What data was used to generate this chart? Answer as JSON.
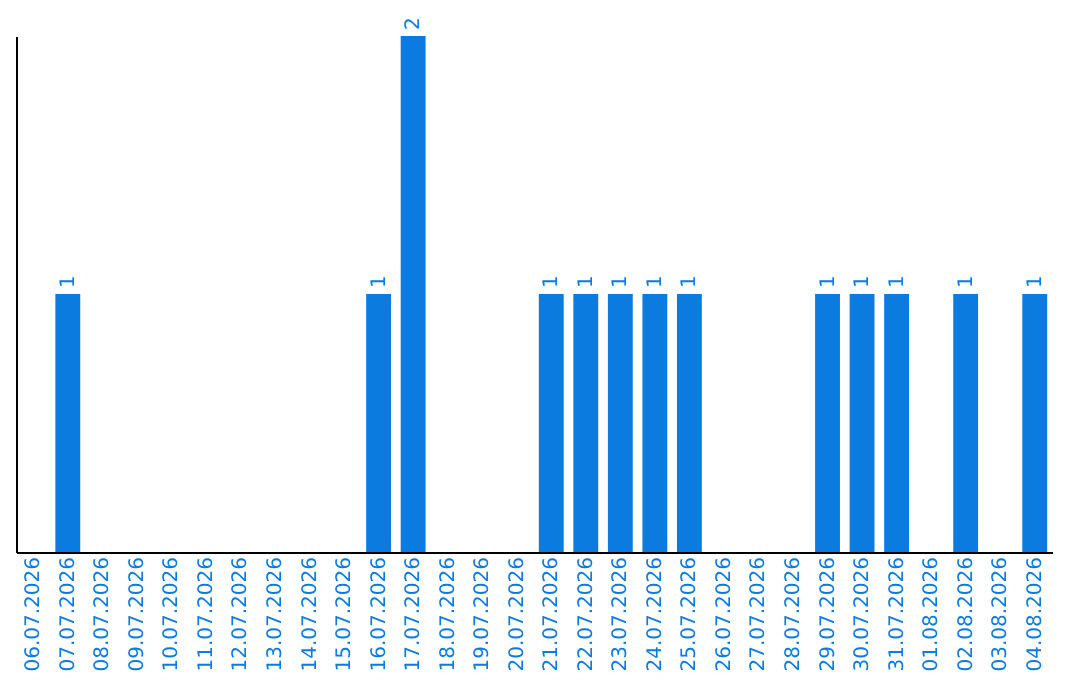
{
  "chart_data": {
    "type": "bar",
    "categories": [
      "06.07.2026",
      "07.07.2026",
      "08.07.2026",
      "09.07.2026",
      "10.07.2026",
      "11.07.2026",
      "12.07.2026",
      "13.07.2026",
      "14.07.2026",
      "15.07.2026",
      "16.07.2026",
      "17.07.2026",
      "18.07.2026",
      "19.07.2026",
      "20.07.2026",
      "21.07.2026",
      "22.07.2026",
      "23.07.2026",
      "24.07.2026",
      "25.07.2026",
      "26.07.2026",
      "27.07.2026",
      "28.07.2026",
      "29.07.2026",
      "30.07.2026",
      "31.07.2026",
      "01.08.2026",
      "02.08.2026",
      "03.08.2026",
      "04.08.2026"
    ],
    "values": [
      0,
      1,
      0,
      0,
      0,
      0,
      0,
      0,
      0,
      0,
      1,
      2,
      0,
      0,
      0,
      1,
      1,
      1,
      1,
      1,
      0,
      0,
      0,
      1,
      1,
      1,
      0,
      1,
      0,
      1
    ],
    "value_labels": [
      null,
      "1",
      null,
      null,
      null,
      null,
      null,
      null,
      null,
      null,
      "1",
      "2",
      null,
      null,
      null,
      "1",
      "1",
      "1",
      "1",
      "1",
      null,
      null,
      null,
      "1",
      "1",
      "1",
      null,
      "1",
      null,
      "1"
    ],
    "color": "#0b7be0",
    "tick_labels": "x",
    "grid": false
  }
}
